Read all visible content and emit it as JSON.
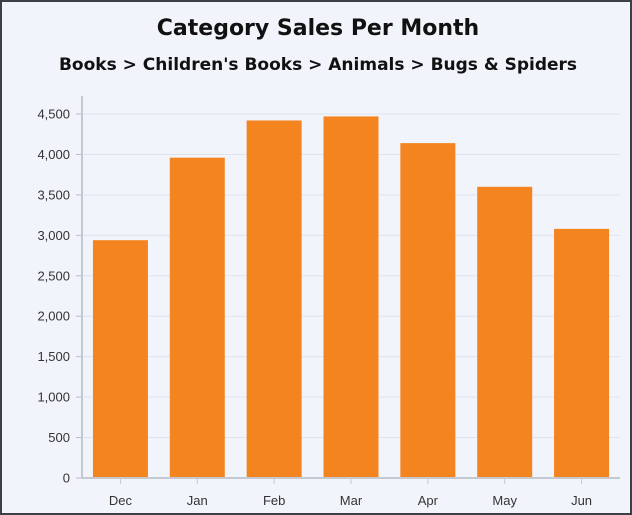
{
  "chart_data": {
    "type": "bar",
    "title": "Category Sales Per Month",
    "subtitle": "Books > Children's Books > Animals > Bugs & Spiders",
    "categories": [
      "Dec",
      "Jan",
      "Feb",
      "Mar",
      "Apr",
      "May",
      "Jun"
    ],
    "values": [
      2940,
      3960,
      4420,
      4470,
      4140,
      3600,
      3080
    ],
    "xlabel": "",
    "ylabel": "",
    "ylim": [
      0,
      4500
    ],
    "yticks": [
      "0",
      "500",
      "1,000",
      "1,500",
      "2,000",
      "2,500",
      "3,000",
      "3,500",
      "4,000",
      "4,500"
    ],
    "grid": true,
    "legend": "none",
    "bar_color": "#f4841f",
    "background_color": "#f2f4fb",
    "gridline_color": "#dfe3ec"
  }
}
